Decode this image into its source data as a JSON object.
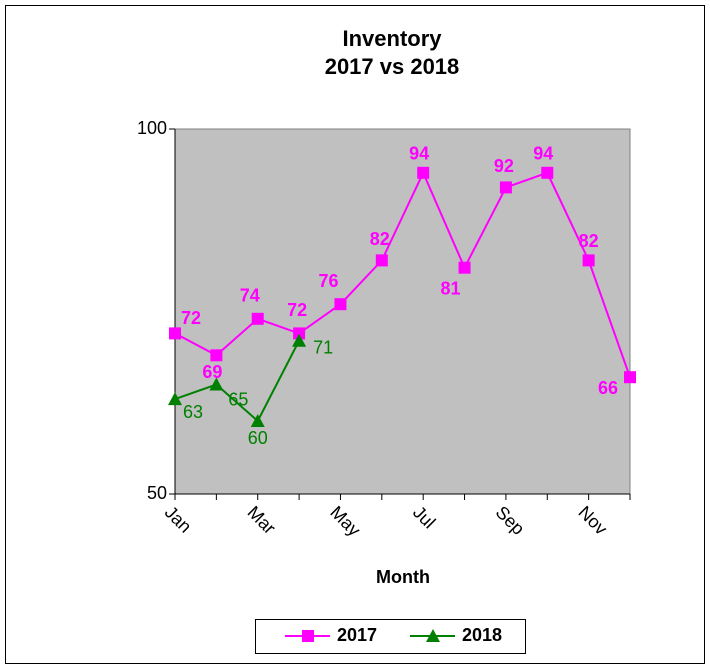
{
  "chart_data": {
    "type": "line",
    "title": [
      "Inventory",
      "2017 vs 2018"
    ],
    "x_label": "Month",
    "categories": [
      "Jan",
      null,
      "Mar",
      null,
      "May",
      null,
      "Jul",
      null,
      "Sep",
      null,
      "Nov",
      null
    ],
    "series": [
      {
        "name": "2017",
        "color": "#ff00ff",
        "marker": "square",
        "values": [
          72,
          69,
          74,
          72,
          76,
          82,
          94,
          81,
          92,
          94,
          82,
          66
        ]
      },
      {
        "name": "2018",
        "color": "#008000",
        "marker": "triangle",
        "values": [
          63,
          65,
          60,
          71,
          null,
          null,
          null,
          null,
          null,
          null,
          null,
          null
        ]
      }
    ],
    "ylim": [
      50,
      100
    ],
    "yticks": [
      50,
      100
    ],
    "grid": false,
    "legend": "bottom"
  }
}
